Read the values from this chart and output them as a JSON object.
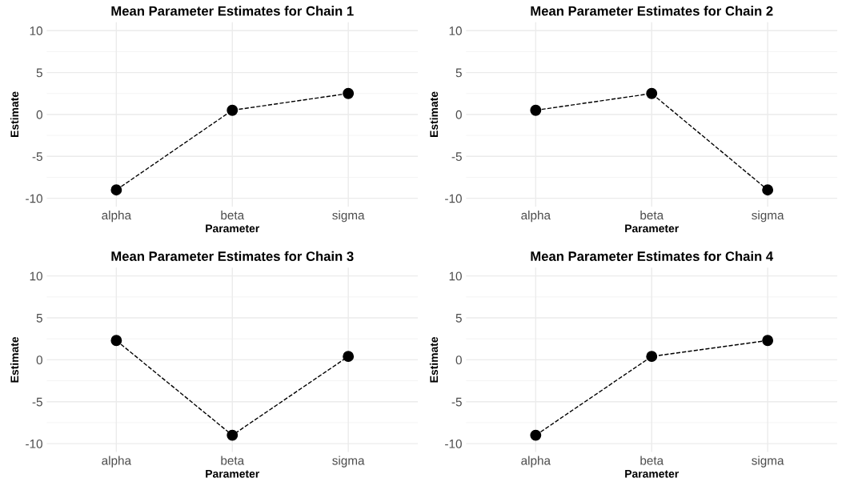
{
  "chart_data": [
    {
      "type": "line",
      "title": "Mean Parameter Estimates for Chain 1",
      "xlabel": "Parameter",
      "ylabel": "Estimate",
      "categories": [
        "alpha",
        "beta",
        "sigma"
      ],
      "series": [
        {
          "color": "#000000",
          "values": [
            -9,
            0.5,
            2.5
          ]
        }
      ],
      "ylim": [
        -11,
        11
      ],
      "yticks": [
        -10,
        -5,
        0,
        5,
        10
      ],
      "grid": true,
      "marker": "circle",
      "line_style": "dashed"
    },
    {
      "type": "line",
      "title": "Mean Parameter Estimates for Chain 2",
      "xlabel": "Parameter",
      "ylabel": "Estimate",
      "categories": [
        "alpha",
        "beta",
        "sigma"
      ],
      "series": [
        {
          "color": "#000000",
          "values": [
            0.5,
            2.5,
            -9
          ]
        }
      ],
      "ylim": [
        -11,
        11
      ],
      "yticks": [
        -10,
        -5,
        0,
        5,
        10
      ],
      "grid": true,
      "marker": "circle",
      "line_style": "dashed"
    },
    {
      "type": "line",
      "title": "Mean Parameter Estimates for Chain 3",
      "xlabel": "Parameter",
      "ylabel": "Estimate",
      "categories": [
        "alpha",
        "beta",
        "sigma"
      ],
      "series": [
        {
          "color": "#000000",
          "values": [
            2.3,
            -9,
            0.4
          ]
        }
      ],
      "ylim": [
        -11,
        11
      ],
      "yticks": [
        -10,
        -5,
        0,
        5,
        10
      ],
      "grid": true,
      "marker": "circle",
      "line_style": "dashed"
    },
    {
      "type": "line",
      "title": "Mean Parameter Estimates for Chain 4",
      "xlabel": "Parameter",
      "ylabel": "Estimate",
      "categories": [
        "alpha",
        "beta",
        "sigma"
      ],
      "series": [
        {
          "color": "#000000",
          "values": [
            -9,
            0.4,
            2.3
          ]
        }
      ],
      "ylim": [
        -11,
        11
      ],
      "yticks": [
        -10,
        -5,
        0,
        5,
        10
      ],
      "grid": true,
      "marker": "circle",
      "line_style": "dashed"
    }
  ]
}
